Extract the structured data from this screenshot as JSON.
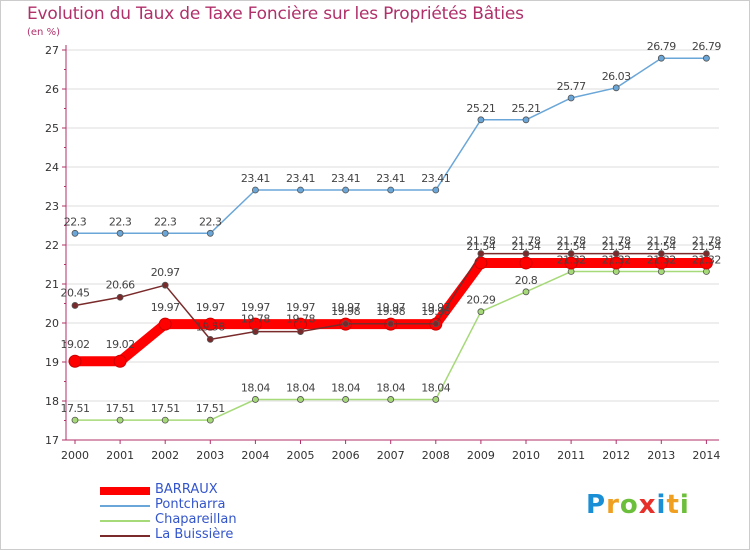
{
  "header": {
    "title": "Evolution du Taux de Taxe Foncière sur les Propriétés Bâties",
    "unit": "(en %)"
  },
  "chart_data": {
    "type": "line",
    "title": "Evolution du Taux de Taxe Foncière sur les Propriétés Bâties",
    "ylabel": "(en %)",
    "xlabel": "",
    "ylim": [
      17,
      27
    ],
    "yticks": [
      17,
      18,
      19,
      20,
      21,
      22,
      23,
      24,
      25,
      26,
      27
    ],
    "x": [
      "2000",
      "2001",
      "2002",
      "2003",
      "2004",
      "2005",
      "2006",
      "2007",
      "2008",
      "2009",
      "2010",
      "2011",
      "2012",
      "2013",
      "2014"
    ],
    "series": [
      {
        "name": "BARRAUX",
        "color": "#ff0000",
        "values": [
          19.02,
          19.02,
          19.97,
          19.97,
          19.97,
          19.97,
          19.97,
          19.97,
          19.97,
          21.54,
          21.54,
          21.54,
          21.54,
          21.54,
          21.54
        ],
        "labels": [
          "19.02",
          "19.02",
          "19.97",
          "19.97",
          "19.97",
          "19.97",
          "19.97",
          "19.97",
          "19.97",
          "21.54",
          "21.54",
          "21.54",
          "21.54",
          "21.54",
          "21.54"
        ]
      },
      {
        "name": "Pontcharra",
        "color": "#6aa6d8",
        "values": [
          22.3,
          22.3,
          22.3,
          22.3,
          23.41,
          23.41,
          23.41,
          23.41,
          23.41,
          25.21,
          25.21,
          25.77,
          26.03,
          26.79,
          26.79
        ],
        "labels": [
          "22.3",
          "22.3",
          "22.3",
          "22.3",
          "23.41",
          "23.41",
          "23.41",
          "23.41",
          "23.41",
          "25.21",
          "25.21",
          "25.77",
          "26.03",
          "26.79",
          "26.79"
        ]
      },
      {
        "name": "Chapareillan",
        "color": "#a6d978",
        "values": [
          17.51,
          17.51,
          17.51,
          17.51,
          18.04,
          18.04,
          18.04,
          18.04,
          18.04,
          20.29,
          20.8,
          21.32,
          21.32,
          21.32,
          21.32
        ],
        "labels": [
          "17.51",
          "17.51",
          "17.51",
          "17.51",
          "18.04",
          "18.04",
          "18.04",
          "18.04",
          "18.04",
          "20.29",
          "20.8",
          "21.32",
          "21.32",
          "21.32",
          "21.32"
        ]
      },
      {
        "name": "La Buissière",
        "color": "#7a2a2a",
        "values": [
          20.45,
          20.66,
          20.97,
          19.58,
          19.78,
          19.78,
          19.98,
          19.98,
          19.98,
          21.78,
          21.78,
          21.78,
          21.78,
          21.78,
          21.78
        ],
        "labels": [
          "20.45",
          "20.66",
          "20.97",
          "19.58",
          "19.78",
          "19.78",
          "19.98",
          "19.98",
          "19.98",
          "21.78",
          "21.78",
          "21.78",
          "21.78",
          "21.78",
          "21.78"
        ]
      }
    ],
    "legend": [
      "BARRAUX",
      "Pontcharra",
      "Chapareillan",
      "La Buissière"
    ],
    "legend_position": "bottom-left"
  },
  "logo": {
    "letters": [
      "P",
      "r",
      "o",
      "x",
      "i",
      "t",
      "i"
    ],
    "colors": [
      "#1a8fd6",
      "#f0a020",
      "#6cbf3a",
      "#e8302a",
      "#1a8fd6",
      "#f0a020",
      "#6cbf3a"
    ]
  }
}
